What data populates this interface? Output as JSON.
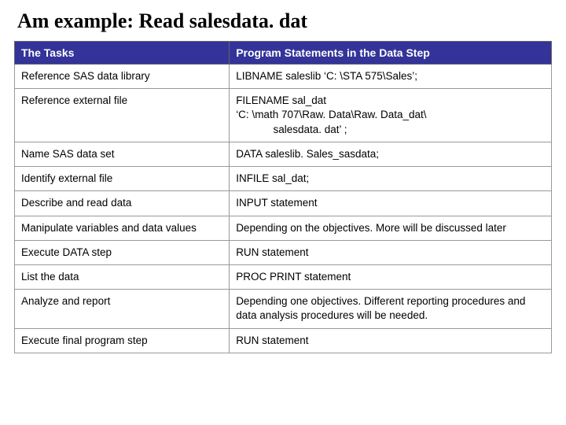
{
  "title": "Am example: Read salesdata. dat",
  "columns": [
    "The Tasks",
    "Program Statements in the Data Step"
  ],
  "rows": [
    {
      "task": "Reference SAS data library",
      "stmt": "LIBNAME saleslib ‘C: \\STA 575\\Sales’;"
    },
    {
      "task": "Reference external file",
      "stmt": "FILENAME sal_dat\n‘C: \\math 707\\Raw. Data\\Raw. Data_dat\\",
      "stmt_indent": "salesdata. dat’ ;"
    },
    {
      "task": "Name SAS data set",
      "stmt": "DATA saleslib. Sales_sasdata;"
    },
    {
      "task": "Identify external file",
      "stmt": "INFILE sal_dat;"
    },
    {
      "task": "Describe and read data",
      "stmt": "INPUT statement"
    },
    {
      "task": "Manipulate variables and data values",
      "stmt": "Depending on the objectives. More will be discussed later"
    },
    {
      "task": "Execute DATA step",
      "stmt": "RUN statement"
    },
    {
      "task": "List the data",
      "stmt": "PROC PRINT statement"
    },
    {
      "task": "Analyze and report",
      "stmt": "Depending one objectives. Different reporting procedures and data analysis procedures will be needed."
    },
    {
      "task": "Execute final program step",
      "stmt": "RUN statement"
    }
  ],
  "colors": {
    "header_bg": "#333399",
    "header_text": "#ffffff",
    "cell_bg": "#ffffff",
    "cell_text": "#000000",
    "border": "#999999"
  }
}
